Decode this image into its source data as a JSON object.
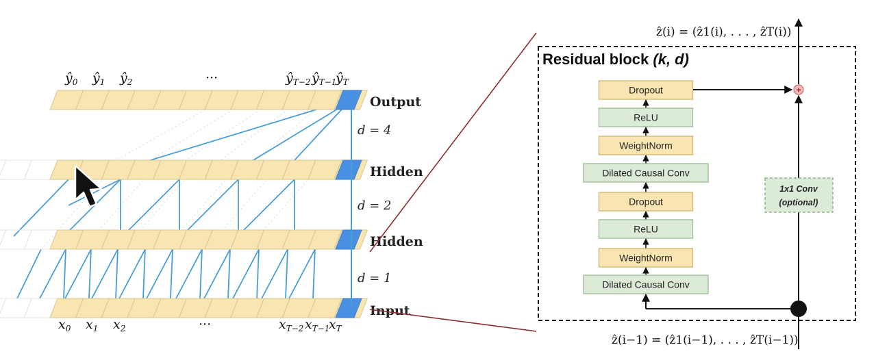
{
  "tcn": {
    "output_labels": [
      "ŷ",
      "ŷ",
      "ŷ",
      "···",
      "ŷ",
      "ŷ",
      "ŷ"
    ],
    "output_subs": [
      "0",
      "1",
      "2",
      "",
      "T−2",
      "T−1",
      "T"
    ],
    "input_labels": [
      "x",
      "x",
      "x",
      "···",
      "x",
      "x",
      "x"
    ],
    "input_subs": [
      "0",
      "1",
      "2",
      "",
      "T−2",
      "T−1",
      "T"
    ],
    "layer_names": [
      "Output",
      "Hidden",
      "Hidden",
      "Input"
    ],
    "dilations": [
      "d = 4",
      "d = 2",
      "d = 1"
    ]
  },
  "residual": {
    "title_main": "Residual block ",
    "title_params": "(k, d)",
    "top_formula": "ẑ(i) = (ẑ1(i), . . . , ẑT(i))",
    "bottom_formula": "ẑ(i−1) = (ẑ1(i−1), . . . , ẑT(i−1))",
    "stack": [
      "Dropout",
      "ReLU",
      "WeightNorm",
      "Dilated Causal Conv",
      "Dropout",
      "ReLU",
      "WeightNorm",
      "Dilated Causal Conv"
    ],
    "skip_line1": "1x1 Conv",
    "skip_line2": "(optional)",
    "plus": "+"
  },
  "colors": {
    "cell_fill": "#F8E5B2",
    "cell_stroke": "#D8C48C",
    "node_blue": "#4A90E2",
    "edge_blue": "#4A9ED8",
    "box_fill": "#DCEBD8",
    "box_stroke": "#9FBE9A",
    "dropout_fill": "#F8E5B2",
    "dropout_stroke": "#D2B873",
    "plus_fill": "#F3B8B8",
    "connector": "#8B2E2E"
  }
}
